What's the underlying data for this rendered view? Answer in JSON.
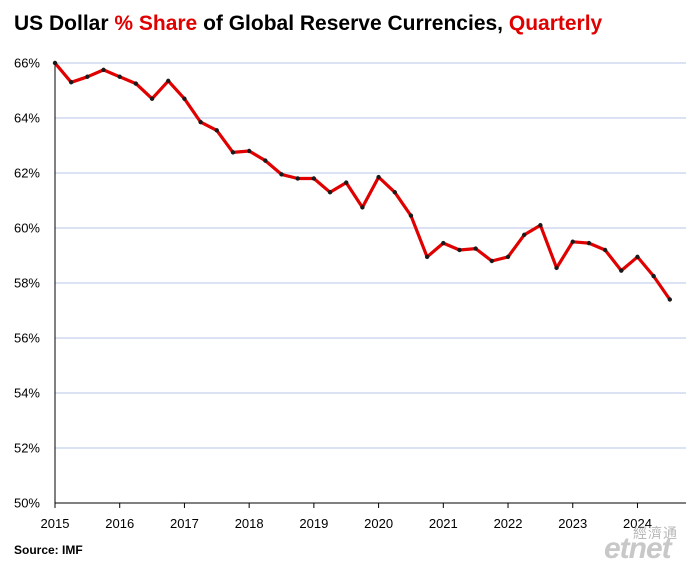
{
  "title": {
    "part1": "US Dollar ",
    "part2": "% Share",
    "part3": " of Global Reserve Currencies, ",
    "part4": "Quarterly"
  },
  "source": "Source: IMF",
  "watermark": {
    "cjk": "經濟通",
    "logo": "etnet"
  },
  "colors": {
    "line": "#e00000",
    "marker": "#1a1a1a",
    "grid": "#b4c6e7",
    "highlight": "#e00000"
  },
  "chart_data": {
    "type": "line",
    "title": "US Dollar % Share of Global Reserve Currencies, Quarterly",
    "xlabel": "",
    "ylabel": "",
    "ylim": [
      50,
      66
    ],
    "xlim": [
      2015,
      2024.75
    ],
    "yticks": [
      50,
      52,
      54,
      56,
      58,
      60,
      62,
      64,
      66
    ],
    "ytick_labels": [
      "50%",
      "52%",
      "54%",
      "56%",
      "58%",
      "60%",
      "62%",
      "64%",
      "66%"
    ],
    "xticks": [
      2015,
      2016,
      2017,
      2018,
      2019,
      2020,
      2021,
      2022,
      2023,
      2024
    ],
    "xtick_labels": [
      "2015",
      "2016",
      "2017",
      "2018",
      "2019",
      "2020",
      "2021",
      "2022",
      "2023",
      "2024"
    ],
    "grid": true,
    "legend": "none",
    "series": [
      {
        "x": [
          2015.0,
          2015.25,
          2015.5,
          2015.75,
          2016.0,
          2016.25,
          2016.5,
          2016.75,
          2017.0,
          2017.25,
          2017.5,
          2017.75,
          2018.0,
          2018.25,
          2018.5,
          2018.75,
          2019.0,
          2019.25,
          2019.5,
          2019.75,
          2020.0,
          2020.25,
          2020.5,
          2020.75,
          2021.0,
          2021.25,
          2021.5,
          2021.75,
          2022.0,
          2022.25,
          2022.5,
          2022.75,
          2023.0,
          2023.25,
          2023.5,
          2023.75,
          2024.0,
          2024.25,
          2024.5
        ],
        "values": [
          66.0,
          65.3,
          65.5,
          65.75,
          65.5,
          65.25,
          64.7,
          65.35,
          64.7,
          63.85,
          63.55,
          62.75,
          62.8,
          62.45,
          61.95,
          61.8,
          61.8,
          61.3,
          61.65,
          60.75,
          61.85,
          61.3,
          60.45,
          58.95,
          59.45,
          59.2,
          59.25,
          58.8,
          58.95,
          59.75,
          60.1,
          58.55,
          59.5,
          59.45,
          59.2,
          58.45,
          58.95,
          58.25,
          57.4
        ]
      }
    ]
  }
}
